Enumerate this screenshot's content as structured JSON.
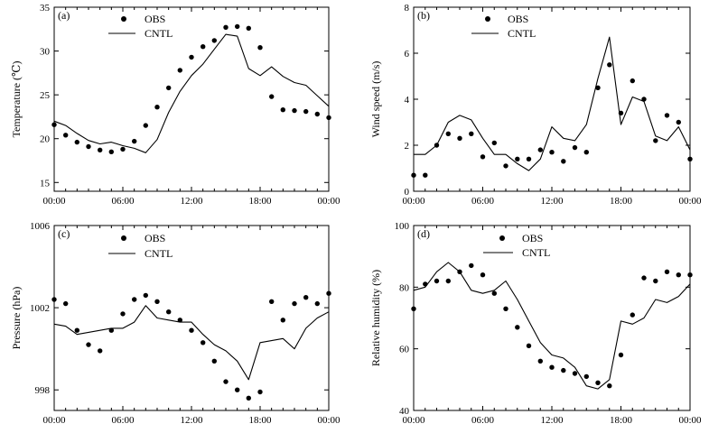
{
  "chart_data": [
    {
      "type": "line",
      "panel_label": "(a)",
      "ylabel": "Temperature (℃)",
      "x_tick_labels": [
        "00:00",
        "06:00",
        "12:00",
        "18:00",
        "00:00"
      ],
      "y_tick_labels": [
        "15",
        "20",
        "25",
        "30",
        "35"
      ],
      "ylim": [
        14,
        35
      ],
      "xlim": [
        0,
        24
      ],
      "legend_position": "top-left",
      "series": [
        {
          "name": "OBS",
          "marker": "dot",
          "x": [
            0,
            1,
            2,
            3,
            4,
            5,
            6,
            7,
            8,
            9,
            10,
            11,
            12,
            13,
            14,
            15,
            16,
            17,
            18,
            19,
            20,
            21,
            22,
            23,
            24
          ],
          "values": [
            21.6,
            20.4,
            19.6,
            19.1,
            18.7,
            18.5,
            18.8,
            19.7,
            21.5,
            23.6,
            25.8,
            27.8,
            29.3,
            30.5,
            31.2,
            32.7,
            32.8,
            32.6,
            30.4,
            24.8,
            23.3,
            23.2,
            23.1,
            22.8,
            22.4
          ]
        },
        {
          "name": "CNTL",
          "marker": "line",
          "x": [
            0,
            1,
            2,
            3,
            4,
            5,
            6,
            7,
            8,
            9,
            10,
            11,
            12,
            13,
            14,
            15,
            16,
            17,
            18,
            19,
            20,
            21,
            22,
            23,
            24
          ],
          "values": [
            22.0,
            21.5,
            20.6,
            19.8,
            19.4,
            19.6,
            19.2,
            18.9,
            18.4,
            19.9,
            23.0,
            25.4,
            27.2,
            28.5,
            30.2,
            31.9,
            31.7,
            28.0,
            27.2,
            28.2,
            27.1,
            26.4,
            26.1,
            24.9,
            23.7
          ]
        }
      ]
    },
    {
      "type": "line",
      "panel_label": "(b)",
      "ylabel": "Wind speed (m/s)",
      "x_tick_labels": [
        "00:00",
        "06:00",
        "12:00",
        "18:00",
        "00:00"
      ],
      "y_tick_labels": [
        "0",
        "2",
        "4",
        "6",
        "8"
      ],
      "ylim": [
        0,
        8
      ],
      "xlim": [
        0,
        24
      ],
      "legend_position": "top-center",
      "series": [
        {
          "name": "OBS",
          "marker": "dot",
          "x": [
            0,
            1,
            2,
            3,
            4,
            5,
            6,
            7,
            8,
            9,
            10,
            11,
            12,
            13,
            14,
            15,
            16,
            17,
            18,
            19,
            20,
            21,
            22,
            23,
            24
          ],
          "values": [
            0.7,
            0.7,
            2.0,
            2.5,
            2.3,
            2.5,
            1.5,
            2.1,
            1.1,
            1.4,
            1.4,
            1.8,
            1.7,
            1.3,
            1.9,
            1.7,
            4.5,
            5.5,
            3.4,
            4.8,
            4.0,
            2.2,
            3.3,
            3.0,
            1.4
          ]
        },
        {
          "name": "CNTL",
          "marker": "line",
          "x": [
            0,
            1,
            2,
            3,
            4,
            5,
            6,
            7,
            8,
            9,
            10,
            11,
            12,
            13,
            14,
            15,
            16,
            17,
            18,
            19,
            20,
            21,
            22,
            23,
            24
          ],
          "values": [
            1.6,
            1.6,
            2.0,
            3.0,
            3.3,
            3.1,
            2.3,
            1.6,
            1.6,
            1.2,
            0.9,
            1.4,
            2.8,
            2.3,
            2.2,
            2.9,
            4.9,
            6.7,
            2.9,
            4.1,
            3.9,
            2.4,
            2.2,
            2.8,
            1.8
          ]
        }
      ]
    },
    {
      "type": "line",
      "panel_label": "(c)",
      "ylabel": "Pressure (hPa)",
      "x_tick_labels": [
        "00:00",
        "06:00",
        "12:00",
        "18:00",
        "00:00"
      ],
      "y_tick_labels": [
        "998",
        "1002",
        "1006"
      ],
      "ylim": [
        997,
        1006
      ],
      "xlim": [
        0,
        24
      ],
      "legend_position": "top-center",
      "series": [
        {
          "name": "OBS",
          "marker": "dot",
          "x": [
            0,
            1,
            2,
            3,
            4,
            5,
            6,
            7,
            8,
            9,
            10,
            11,
            12,
            13,
            14,
            15,
            16,
            17,
            18,
            19,
            20,
            21,
            22,
            23,
            24
          ],
          "values": [
            1002.4,
            1002.2,
            1000.9,
            1000.2,
            999.9,
            1000.9,
            1001.7,
            1002.4,
            1002.6,
            1002.3,
            1001.8,
            1001.4,
            1000.9,
            1000.3,
            999.4,
            998.4,
            998.0,
            997.6,
            997.9,
            1002.3,
            1001.4,
            1002.2,
            1002.5,
            1002.2,
            1002.7
          ]
        },
        {
          "name": "CNTL",
          "marker": "line",
          "x": [
            0,
            1,
            2,
            3,
            4,
            5,
            6,
            7,
            8,
            9,
            10,
            11,
            12,
            13,
            14,
            15,
            16,
            17,
            18,
            19,
            20,
            21,
            22,
            23,
            24
          ],
          "values": [
            1001.2,
            1001.1,
            1000.7,
            1000.8,
            1000.9,
            1001.0,
            1001.0,
            1001.3,
            1002.1,
            1001.5,
            1001.4,
            1001.3,
            1001.3,
            1000.7,
            1000.2,
            999.9,
            999.4,
            998.5,
            1000.3,
            1000.4,
            1000.5,
            1000.0,
            1001.0,
            1001.5,
            1001.8
          ]
        }
      ]
    },
    {
      "type": "line",
      "panel_label": "(d)",
      "ylabel": "Relative humidity (%)",
      "x_tick_labels": [
        "00:00",
        "06:00",
        "12:00",
        "18:00",
        "00:00"
      ],
      "y_tick_labels": [
        "40",
        "60",
        "80",
        "100"
      ],
      "ylim": [
        40,
        100
      ],
      "xlim": [
        0,
        24
      ],
      "legend_position": "top-center",
      "series": [
        {
          "name": "OBS",
          "marker": "dot",
          "x": [
            0,
            1,
            2,
            3,
            4,
            5,
            6,
            7,
            8,
            9,
            10,
            11,
            12,
            13,
            14,
            15,
            16,
            17,
            18,
            19,
            20,
            21,
            22,
            23,
            24
          ],
          "values": [
            73,
            81,
            82,
            82,
            85,
            87,
            84,
            78,
            73,
            67,
            61,
            56,
            54,
            53,
            52,
            51,
            49,
            48,
            58,
            71,
            83,
            82,
            85,
            84,
            84
          ]
        },
        {
          "name": "CNTL",
          "marker": "line",
          "x": [
            0,
            1,
            2,
            3,
            4,
            5,
            6,
            7,
            8,
            9,
            10,
            11,
            12,
            13,
            14,
            15,
            16,
            17,
            18,
            19,
            20,
            21,
            22,
            23,
            24
          ],
          "values": [
            79,
            80,
            85,
            88,
            85,
            79,
            78,
            79,
            82,
            76,
            69,
            62,
            58,
            57,
            54,
            48,
            47,
            50,
            69,
            68,
            70,
            76,
            75,
            77,
            81
          ]
        }
      ]
    }
  ]
}
